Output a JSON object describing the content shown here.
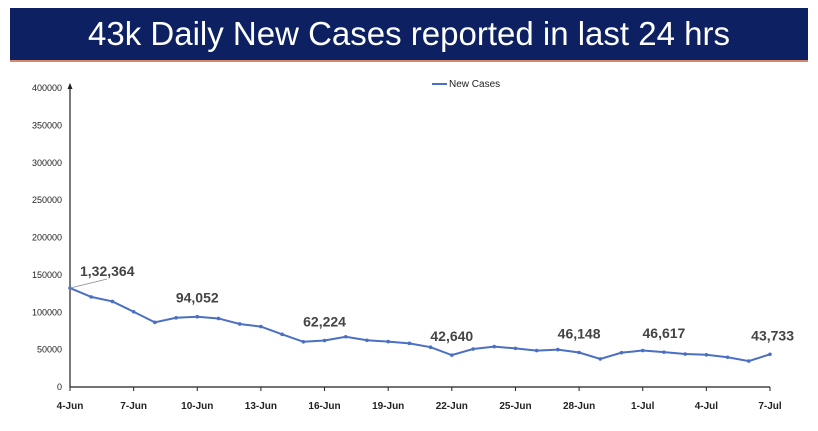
{
  "title": "43k Daily New Cases reported in last 24 hrs",
  "colors": {
    "banner": "#0d2162",
    "series": "#4a6fc4",
    "banner_underline": "#d9876a"
  },
  "chart_data": {
    "type": "line",
    "title": "43k Daily New Cases reported in last 24 hrs",
    "xlabel": "",
    "ylabel": "",
    "ylim": [
      0,
      400000
    ],
    "yticks": [
      "0",
      "50000",
      "100000",
      "150000",
      "200000",
      "250000",
      "300000",
      "350000",
      "400000"
    ],
    "xticks": [
      "4-Jun",
      "7-Jun",
      "10-Jun",
      "13-Jun",
      "16-Jun",
      "19-Jun",
      "22-Jun",
      "25-Jun",
      "28-Jun",
      "1-Jul",
      "4-Jul",
      "7-Jul"
    ],
    "grid": false,
    "legend": "top-center",
    "x": [
      "4-Jun",
      "5-Jun",
      "6-Jun",
      "7-Jun",
      "8-Jun",
      "9-Jun",
      "10-Jun",
      "11-Jun",
      "12-Jun",
      "13-Jun",
      "14-Jun",
      "15-Jun",
      "16-Jun",
      "17-Jun",
      "18-Jun",
      "19-Jun",
      "20-Jun",
      "21-Jun",
      "22-Jun",
      "23-Jun",
      "24-Jun",
      "25-Jun",
      "26-Jun",
      "27-Jun",
      "28-Jun",
      "29-Jun",
      "30-Jun",
      "1-Jul",
      "2-Jul",
      "3-Jul",
      "4-Jul",
      "5-Jul",
      "6-Jul",
      "7-Jul"
    ],
    "series": [
      {
        "name": "New Cases",
        "values": [
          132364,
          120529,
          114460,
          100636,
          86498,
          92596,
          94052,
          91702,
          84332,
          80834,
          70421,
          60471,
          62224,
          67208,
          62480,
          60753,
          58419,
          53256,
          42640,
          50848,
          54069,
          51667,
          48698,
          50040,
          46148,
          37566,
          45951,
          48786,
          46617,
          44111,
          43071,
          39796,
          34703,
          43733
        ]
      }
    ],
    "annotations": [
      {
        "x": "4-Jun",
        "text": "1,32,364"
      },
      {
        "x": "10-Jun",
        "text": "94,052"
      },
      {
        "x": "16-Jun",
        "text": "62,224"
      },
      {
        "x": "22-Jun",
        "text": "42,640"
      },
      {
        "x": "28-Jun",
        "text": "46,148"
      },
      {
        "x": "2-Jul",
        "text": "46,617"
      },
      {
        "x": "7-Jul",
        "text": "43,733"
      }
    ]
  }
}
